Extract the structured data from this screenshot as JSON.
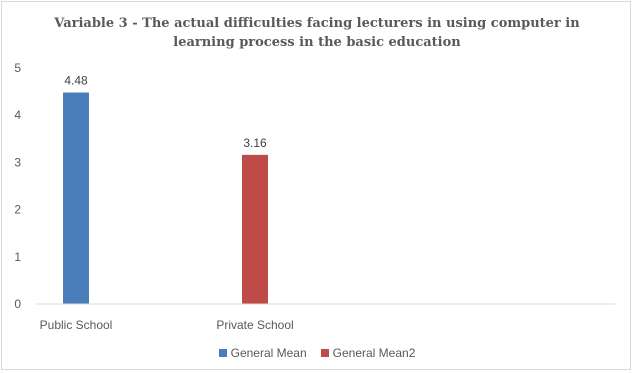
{
  "chart_data": {
    "type": "bar",
    "title_lines": [
      "Variable 3 - The actual difficulties facing lecturers in using computer in",
      "learning process in the basic education"
    ],
    "categories": [
      "Public School",
      "Private School"
    ],
    "series": [
      {
        "name": "General Mean",
        "color": "#4a7ebb",
        "values": [
          4.48,
          null
        ]
      },
      {
        "name": "General Mean2",
        "color": "#be4b48",
        "values": [
          null,
          3.16
        ]
      }
    ],
    "data_labels": [
      "4.48",
      "3.16"
    ],
    "ylim": [
      0,
      5
    ],
    "yticks": [
      0,
      1,
      2,
      3,
      4,
      5
    ],
    "grid": false,
    "legend": "bottom"
  }
}
